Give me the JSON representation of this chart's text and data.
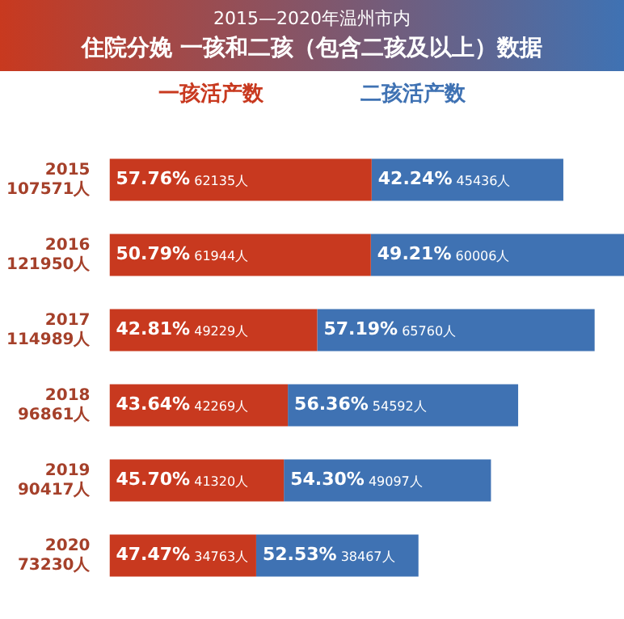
{
  "chart_data": {
    "type": "bar",
    "orientation": "horizontal",
    "stacked": true,
    "title": "2015—2020年温州市内",
    "subtitle": "住院分娩 一孩和二孩（包含二孩及以上）数据",
    "categories": [
      "2015",
      "2016",
      "2017",
      "2018",
      "2019",
      "2020"
    ],
    "series": [
      {
        "name": "一孩活产数",
        "color": "#c8391f",
        "values": [
          62135,
          61944,
          49229,
          42269,
          41320,
          34763
        ],
        "value_labels": [
          "57.76% 62135人",
          "50.79% 61944人",
          "42.81% 49229人",
          "43.64% 42269人",
          "45.70% 41320人",
          "47.47% 34763人"
        ]
      },
      {
        "name": "二孩活产数",
        "color": "#3f72b3",
        "values": [
          45436,
          60006,
          65760,
          54592,
          49097,
          38467
        ],
        "value_labels": [
          "42.24% 45436人",
          "49.21% 60006人",
          "57.19% 65760人",
          "56.36% 54592人",
          "54.30% 49097人",
          "52.53% 38467人"
        ]
      }
    ],
    "totals": [
      "107571人",
      "121950人",
      "114989人",
      "96861人",
      "90417人",
      "73230人"
    ],
    "xlim": [
      0,
      121950
    ],
    "tick_labels": "y",
    "legend": "top"
  }
}
